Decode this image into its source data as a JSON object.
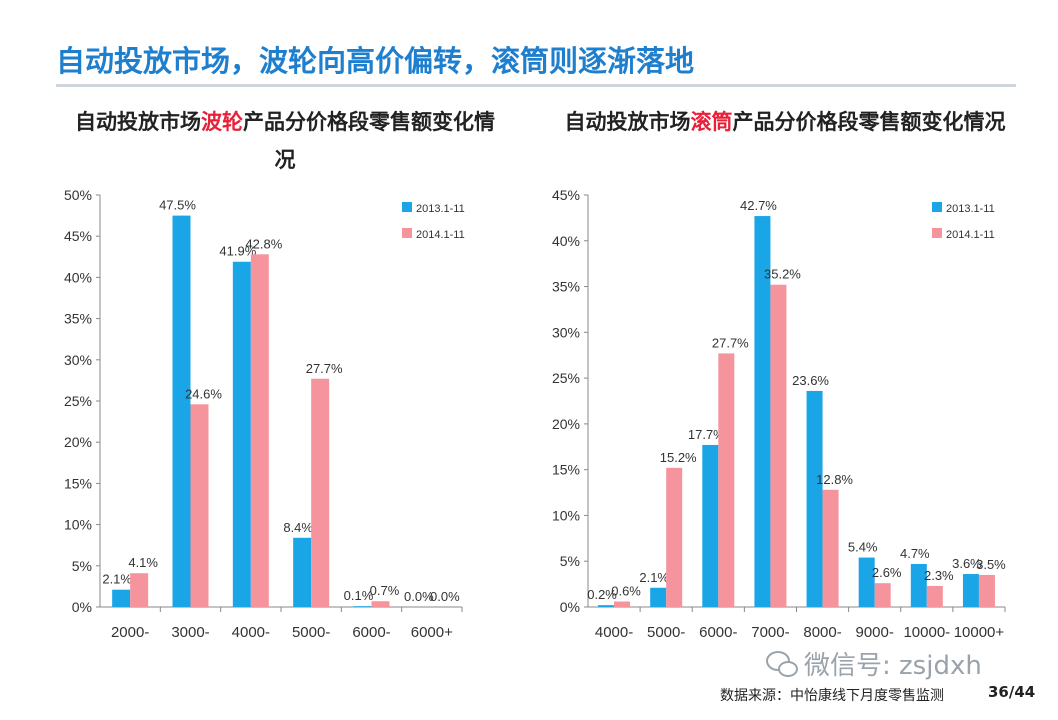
{
  "slide": {
    "title": "自动投放市场，波轮向高价偏转，滚筒则逐渐落地",
    "wechat": "微信号: zsjdxh",
    "source": "数据来源：中怡康线下月度零售监测",
    "page": "36/44"
  },
  "left_title": {
    "pre": "自动投放市场",
    "highlight": "波轮",
    "post": "产品分价格段零售额变化情况"
  },
  "right_title": {
    "pre": "自动投放市场",
    "highlight": "滚筒",
    "post": "产品分价格段零售额变化情况"
  },
  "colors": {
    "series_2013": "#1aa5e6",
    "series_2014": "#f5949c",
    "highlight": "#e8203a",
    "title": "#1f7fcf"
  },
  "chart_data": [
    {
      "type": "bar",
      "title": "自动投放市场波轮产品分价格段零售额变化情况",
      "categories": [
        "2000-",
        "3000-",
        "4000-",
        "5000-",
        "6000-",
        "6000+"
      ],
      "series": [
        {
          "name": "2013.1-11",
          "values": [
            2.1,
            47.5,
            41.9,
            8.4,
            0.1,
            0.0
          ],
          "labels": [
            "2.1%",
            "47.5%",
            "41.9%",
            "8.4%",
            "0.1%",
            "0.0%"
          ]
        },
        {
          "name": "2014.1-11",
          "values": [
            4.1,
            24.6,
            42.8,
            27.7,
            0.7,
            0.0
          ],
          "labels": [
            "4.1%",
            "24.6%",
            "42.8%",
            "27.7%",
            "0.7%",
            "0.0%"
          ]
        }
      ],
      "yticks": [
        "0%",
        "5%",
        "10%",
        "15%",
        "20%",
        "25%",
        "30%",
        "35%",
        "40%",
        "45%",
        "50%"
      ],
      "ylim": [
        0,
        50
      ],
      "legend": "top-right"
    },
    {
      "type": "bar",
      "title": "自动投放市场滚筒产品分价格段零售额变化情况",
      "categories": [
        "4000-",
        "5000-",
        "6000-",
        "7000-",
        "8000-",
        "9000-",
        "10000-",
        "10000+"
      ],
      "series": [
        {
          "name": "2013.1-11",
          "values": [
            0.2,
            2.1,
            17.7,
            42.7,
            23.6,
            5.4,
            4.7,
            3.6
          ],
          "labels": [
            "0.2%",
            "2.1%",
            "17.7%",
            "42.7%",
            "23.6%",
            "5.4%",
            "4.7%",
            "3.6%"
          ]
        },
        {
          "name": "2014.1-11",
          "values": [
            0.6,
            15.2,
            27.7,
            35.2,
            12.8,
            2.6,
            2.3,
            3.5
          ],
          "labels": [
            "0.6%",
            "15.2%",
            "27.7%",
            "35.2%",
            "12.8%",
            "2.6%",
            "2.3%",
            "3.5%"
          ]
        }
      ],
      "yticks": [
        "0%",
        "5%",
        "10%",
        "15%",
        "20%",
        "25%",
        "30%",
        "35%",
        "40%",
        "45%"
      ],
      "ylim": [
        0,
        45
      ],
      "legend": "top-right"
    }
  ]
}
